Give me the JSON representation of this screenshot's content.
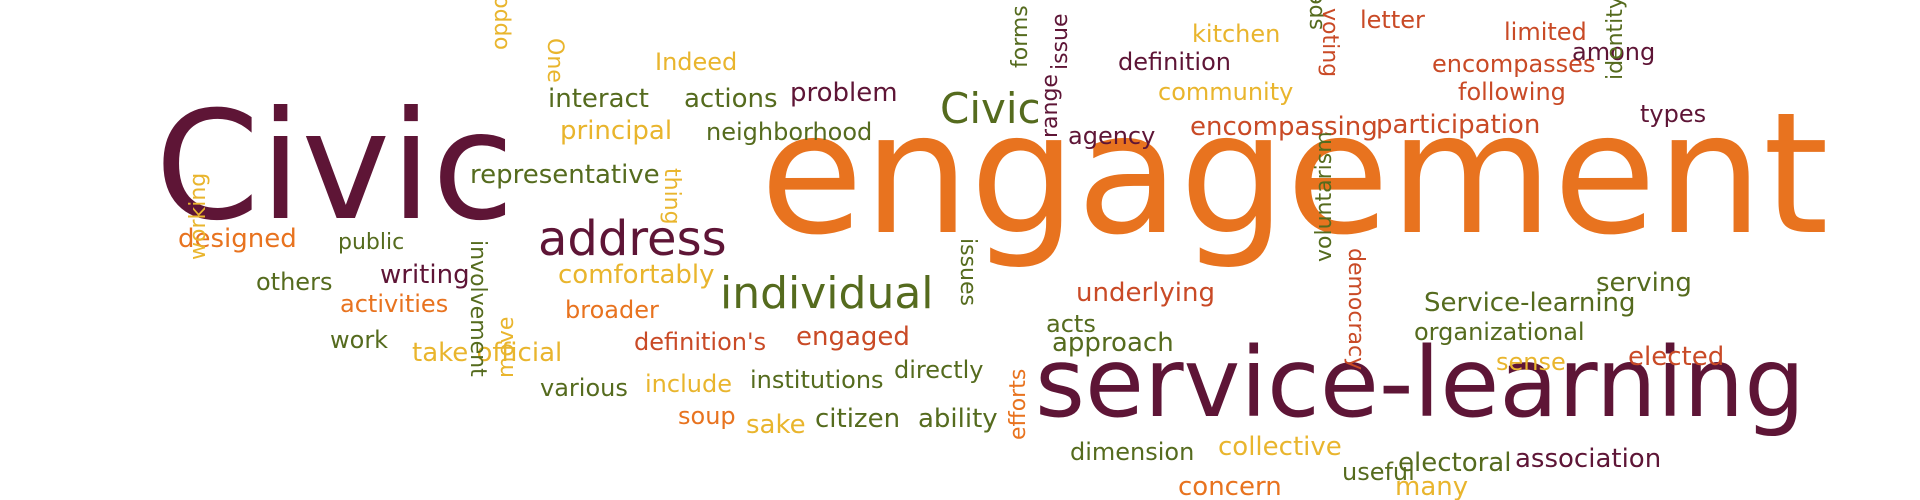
{
  "colors": {
    "maroon": "#5e1536",
    "orange": "#e8731f",
    "olive": "#556b1e",
    "yellow": "#e9b52d",
    "red": "#c94a26"
  },
  "words": [
    {
      "text": "Civic",
      "color": "maroon",
      "size": "xl"
    },
    {
      "text": "engagement",
      "color": "orange",
      "size": "xxl"
    },
    {
      "text": "service-learning",
      "color": "maroon",
      "size": "l"
    },
    {
      "text": "address",
      "color": "maroon",
      "size": "m"
    },
    {
      "text": "individual",
      "color": "olive",
      "size": "m"
    },
    {
      "text": "Civic",
      "color": "olive",
      "size": "m"
    },
    {
      "text": "representative",
      "color": "olive",
      "size": "s"
    },
    {
      "text": "principal",
      "color": "yellow",
      "size": "s"
    },
    {
      "text": "neighborhood",
      "color": "olive",
      "size": "s"
    },
    {
      "text": "interact",
      "color": "olive",
      "size": "s"
    },
    {
      "text": "actions",
      "color": "olive",
      "size": "s"
    },
    {
      "text": "problem",
      "color": "maroon",
      "size": "s"
    },
    {
      "text": "Indeed",
      "color": "yellow",
      "size": "s"
    },
    {
      "text": "One",
      "color": "yellow",
      "size": "s"
    },
    {
      "text": "opportunity",
      "color": "yellow",
      "size": "s"
    },
    {
      "text": "designed",
      "color": "orange",
      "size": "s"
    },
    {
      "text": "public",
      "color": "olive",
      "size": "s"
    },
    {
      "text": "others",
      "color": "olive",
      "size": "s"
    },
    {
      "text": "writing",
      "color": "maroon",
      "size": "s"
    },
    {
      "text": "activities",
      "color": "orange",
      "size": "s"
    },
    {
      "text": "work",
      "color": "olive",
      "size": "s"
    },
    {
      "text": "take official",
      "color": "yellow",
      "size": "s"
    },
    {
      "text": "working",
      "color": "yellow",
      "size": "s"
    },
    {
      "text": "involvement",
      "color": "olive",
      "size": "s"
    },
    {
      "text": "comfortably",
      "color": "yellow",
      "size": "s"
    },
    {
      "text": "broader",
      "color": "orange",
      "size": "s"
    },
    {
      "text": "definition's",
      "color": "red",
      "size": "s"
    },
    {
      "text": "engaged",
      "color": "red",
      "size": "s"
    },
    {
      "text": "various",
      "color": "olive",
      "size": "s"
    },
    {
      "text": "include",
      "color": "yellow",
      "size": "s"
    },
    {
      "text": "institutions",
      "color": "olive",
      "size": "s"
    },
    {
      "text": "directly",
      "color": "olive",
      "size": "s"
    },
    {
      "text": "move",
      "color": "yellow",
      "size": "s"
    },
    {
      "text": "soup",
      "color": "orange",
      "size": "s"
    },
    {
      "text": "sake",
      "color": "yellow",
      "size": "s"
    },
    {
      "text": "citizen",
      "color": "olive",
      "size": "s"
    },
    {
      "text": "ability",
      "color": "olive",
      "size": "s"
    },
    {
      "text": "efforts",
      "color": "orange",
      "size": "s"
    },
    {
      "text": "dimension",
      "color": "olive",
      "size": "s"
    },
    {
      "text": "collective",
      "color": "yellow",
      "size": "s"
    },
    {
      "text": "useful",
      "color": "olive",
      "size": "s"
    },
    {
      "text": "concern",
      "color": "orange",
      "size": "s"
    },
    {
      "text": "many",
      "color": "yellow",
      "size": "s"
    },
    {
      "text": "electoral",
      "color": "olive",
      "size": "s"
    },
    {
      "text": "association",
      "color": "maroon",
      "size": "s"
    },
    {
      "text": "thing",
      "color": "yellow",
      "size": "s"
    },
    {
      "text": "kitchen",
      "color": "yellow",
      "size": "s"
    },
    {
      "text": "letter",
      "color": "red",
      "size": "s"
    },
    {
      "text": "limited",
      "color": "red",
      "size": "s"
    },
    {
      "text": "forms",
      "color": "olive",
      "size": "s"
    },
    {
      "text": "range",
      "color": "maroon",
      "size": "s"
    },
    {
      "text": "issue",
      "color": "maroon",
      "size": "s"
    },
    {
      "text": "definition",
      "color": "maroon",
      "size": "s"
    },
    {
      "text": "community",
      "color": "yellow",
      "size": "s"
    },
    {
      "text": "specific",
      "color": "olive",
      "size": "s"
    },
    {
      "text": "voting",
      "color": "red",
      "size": "s"
    },
    {
      "text": "encompasses",
      "color": "red",
      "size": "s"
    },
    {
      "text": "among",
      "color": "maroon",
      "size": "s"
    },
    {
      "text": "following",
      "color": "red",
      "size": "s"
    },
    {
      "text": "identity",
      "color": "olive",
      "size": "s"
    },
    {
      "text": "types",
      "color": "maroon",
      "size": "s"
    },
    {
      "text": "agency",
      "color": "maroon",
      "size": "s"
    },
    {
      "text": "encompassing",
      "color": "red",
      "size": "s"
    },
    {
      "text": "participation",
      "color": "red",
      "size": "s"
    },
    {
      "text": "issues",
      "color": "olive",
      "size": "s"
    },
    {
      "text": "underlying",
      "color": "red",
      "size": "s"
    },
    {
      "text": "acts",
      "color": "olive",
      "size": "s"
    },
    {
      "text": "approach",
      "color": "olive",
      "size": "s"
    },
    {
      "text": "voluntarism",
      "color": "olive",
      "size": "s"
    },
    {
      "text": "democracy",
      "color": "red",
      "size": "s"
    },
    {
      "text": "serving",
      "color": "olive",
      "size": "s"
    },
    {
      "text": "Service-learning",
      "color": "olive",
      "size": "s"
    },
    {
      "text": "organizational",
      "color": "olive",
      "size": "s"
    },
    {
      "text": "sense",
      "color": "yellow",
      "size": "s"
    },
    {
      "text": "elected",
      "color": "red",
      "size": "s"
    }
  ]
}
